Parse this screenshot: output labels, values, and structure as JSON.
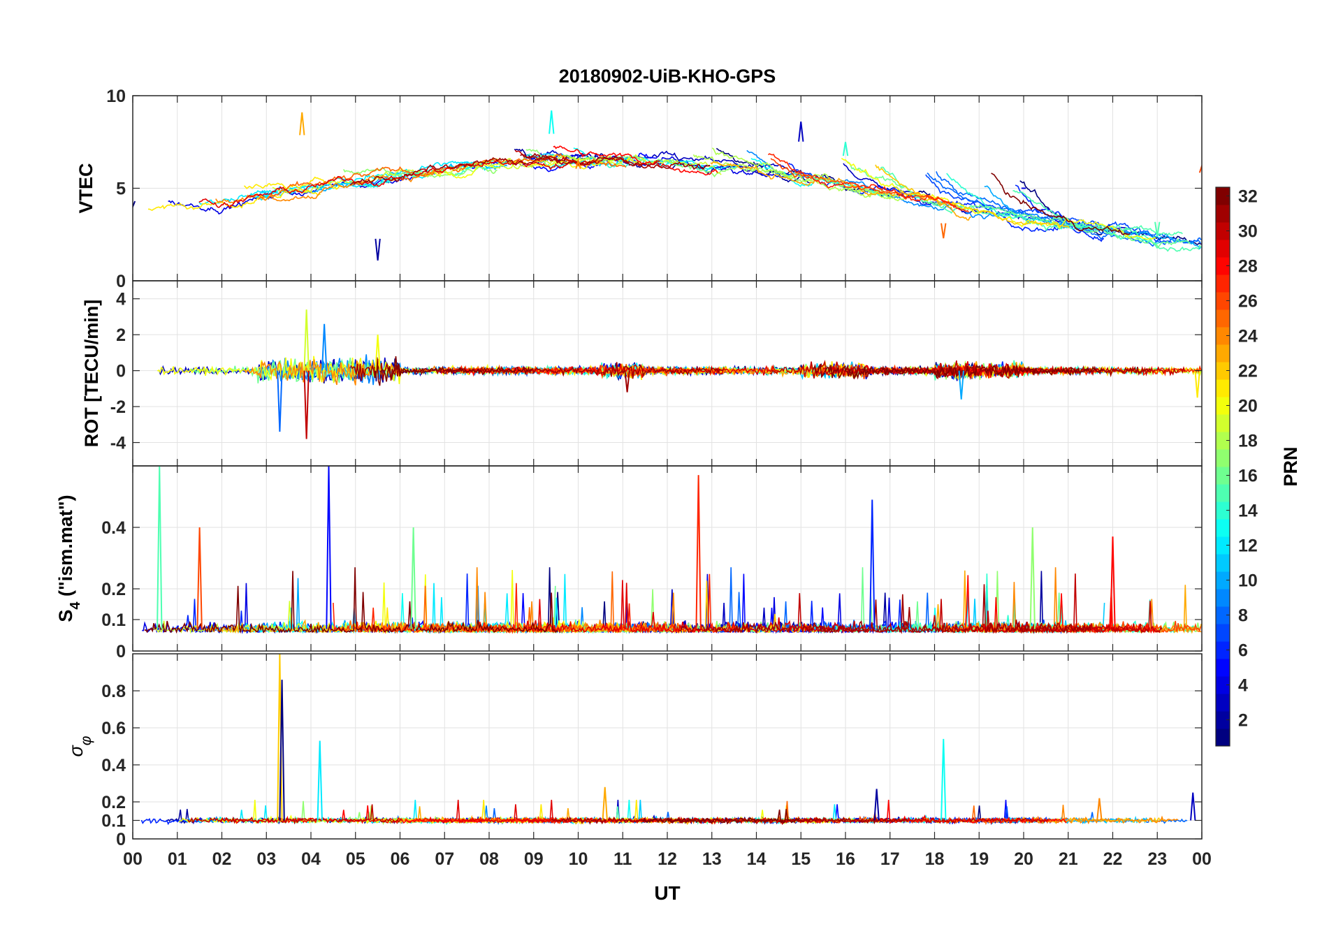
{
  "title": "20180902-UiB-KHO-GPS",
  "xlabel": "UT",
  "x_ticks": [
    "00",
    "01",
    "02",
    "03",
    "04",
    "05",
    "06",
    "07",
    "08",
    "09",
    "10",
    "11",
    "12",
    "13",
    "14",
    "15",
    "16",
    "17",
    "18",
    "19",
    "20",
    "21",
    "22",
    "23",
    "00"
  ],
  "colorbar": {
    "label": "PRN",
    "min": 1,
    "max": 32,
    "ticks": [
      2,
      4,
      6,
      8,
      10,
      12,
      14,
      16,
      18,
      20,
      22,
      24,
      26,
      28,
      30,
      32
    ],
    "colormap": "jet"
  },
  "chart_data": [
    {
      "type": "line",
      "panel": "VTEC",
      "ylabel": "VTEC",
      "ylim": [
        0,
        10
      ],
      "yticks": [
        0,
        5,
        10
      ],
      "xlim": [
        0,
        24
      ],
      "grid": true,
      "series_summary": "one line per GPS PRN, colored by PRN",
      "key_features": [
        {
          "x": 0.0,
          "y": 4.0
        },
        {
          "x": 3.0,
          "y": 4.5
        },
        {
          "x": 3.8,
          "y": 9.1
        },
        {
          "x": 5.5,
          "y": 1.1
        },
        {
          "x": 9.4,
          "y": 9.2
        },
        {
          "x": 10.0,
          "y": 6.5
        },
        {
          "x": 15.0,
          "y": 8.6
        },
        {
          "x": 16.0,
          "y": 7.5
        },
        {
          "x": 18.2,
          "y": 2.3
        },
        {
          "x": 20.0,
          "y": 5.0
        },
        {
          "x": 23.0,
          "y": 2.4
        },
        {
          "x": 24.0,
          "y": 6.2
        }
      ]
    },
    {
      "type": "line",
      "panel": "ROT",
      "ylabel": "ROT [TECU/min]",
      "ylim": [
        -5.3,
        5
      ],
      "yticks": [
        -4,
        -2,
        0,
        2,
        4
      ],
      "xlim": [
        0,
        24
      ],
      "grid": true,
      "key_features": [
        {
          "x": 3.3,
          "y": -3.4
        },
        {
          "x": 3.9,
          "y": 3.4
        },
        {
          "x": 3.9,
          "y": -3.8
        },
        {
          "x": 4.3,
          "y": 2.6
        },
        {
          "x": 5.5,
          "y": 2.0
        },
        {
          "x": 11.1,
          "y": -1.2
        },
        {
          "x": 18.6,
          "y": -1.6
        },
        {
          "x": 23.9,
          "y": -1.5
        }
      ]
    },
    {
      "type": "line",
      "panel": "S4",
      "ylabel": "S4 (\"ism.mat\")",
      "ylim": [
        0,
        0.6
      ],
      "yticks": [
        0,
        0.1,
        0.2,
        0.4
      ],
      "xlim": [
        0,
        24
      ],
      "grid": true,
      "key_features": [
        {
          "x": 0.6,
          "y": 0.6
        },
        {
          "x": 1.5,
          "y": 0.4
        },
        {
          "x": 4.4,
          "y": 0.6
        },
        {
          "x": 6.3,
          "y": 0.4
        },
        {
          "x": 12.7,
          "y": 0.57
        },
        {
          "x": 16.6,
          "y": 0.49
        },
        {
          "x": 20.2,
          "y": 0.4
        },
        {
          "x": 22.0,
          "y": 0.37
        }
      ]
    },
    {
      "type": "line",
      "panel": "sigma_phi",
      "ylabel": "σφ",
      "ylim": [
        0,
        1.0
      ],
      "yticks": [
        0,
        0.1,
        0.2,
        0.4,
        0.6,
        0.8
      ],
      "xlim": [
        0,
        24
      ],
      "grid": true,
      "key_features": [
        {
          "x": 3.3,
          "y": 1.0
        },
        {
          "x": 3.35,
          "y": 0.86
        },
        {
          "x": 4.2,
          "y": 0.53
        },
        {
          "x": 10.6,
          "y": 0.28
        },
        {
          "x": 16.7,
          "y": 0.27
        },
        {
          "x": 18.2,
          "y": 0.54
        },
        {
          "x": 21.7,
          "y": 0.22
        },
        {
          "x": 23.8,
          "y": 0.25
        }
      ]
    }
  ]
}
